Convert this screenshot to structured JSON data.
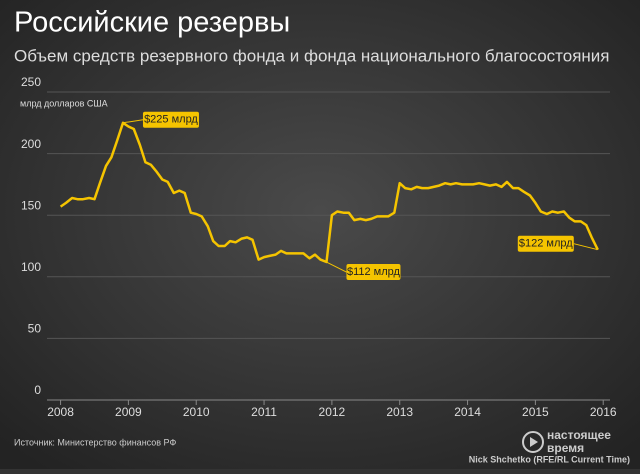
{
  "chart_data": {
    "type": "line",
    "title": "Российские резервы",
    "subtitle": "Объем средств резервного фонда и фонда национального благосостояния",
    "y_axis_label": "млрд долларов США",
    "source": "Источник: Министерство финансов РФ",
    "credit": "Nick Shchetko (RFE/RL Current Time)",
    "logo": [
      "настоящее",
      "время"
    ],
    "annotations": [
      "$225 млрд",
      "$112 млрд",
      "$122 млрд"
    ],
    "xlim": [
      2007.8,
      2016.1
    ],
    "xticks": [
      2008,
      2009,
      2010,
      2011,
      2012,
      2013,
      2014,
      2015,
      2016
    ],
    "ylim": [
      0,
      250
    ],
    "yticks": [
      0,
      50,
      100,
      150,
      200,
      250
    ],
    "grid": true,
    "x": [
      2008.0,
      2008.08,
      2008.17,
      2008.25,
      2008.33,
      2008.42,
      2008.5,
      2008.58,
      2008.67,
      2008.75,
      2008.83,
      2008.92,
      2009.0,
      2009.08,
      2009.17,
      2009.25,
      2009.33,
      2009.42,
      2009.5,
      2009.58,
      2009.67,
      2009.75,
      2009.83,
      2009.92,
      2010.0,
      2010.08,
      2010.17,
      2010.25,
      2010.33,
      2010.42,
      2010.5,
      2010.58,
      2010.67,
      2010.75,
      2010.83,
      2010.92,
      2011.0,
      2011.08,
      2011.17,
      2011.25,
      2011.33,
      2011.42,
      2011.5,
      2011.58,
      2011.67,
      2011.75,
      2011.83,
      2011.92,
      2012.0,
      2012.08,
      2012.17,
      2012.25,
      2012.33,
      2012.42,
      2012.5,
      2012.58,
      2012.67,
      2012.75,
      2012.83,
      2012.92,
      2013.0,
      2013.08,
      2013.17,
      2013.25,
      2013.33,
      2013.42,
      2013.5,
      2013.58,
      2013.67,
      2013.75,
      2013.83,
      2013.92,
      2014.0,
      2014.08,
      2014.17,
      2014.25,
      2014.33,
      2014.42,
      2014.5,
      2014.58,
      2014.67,
      2014.75,
      2014.83,
      2014.92,
      2015.0,
      2015.08,
      2015.17,
      2015.25,
      2015.33,
      2015.42,
      2015.5,
      2015.58,
      2015.67,
      2015.75,
      2015.83,
      2015.92
    ],
    "series": [
      {
        "color": "#f5c400",
        "values": [
          157,
          160,
          164,
          163,
          163,
          164,
          163,
          176,
          190,
          197,
          210,
          225,
          222,
          220,
          207,
          193,
          191,
          185,
          179,
          177,
          168,
          170,
          168,
          152,
          151,
          149,
          141,
          129,
          125,
          125,
          129,
          128,
          131,
          132,
          130,
          114,
          116,
          117,
          118,
          121,
          119,
          119,
          119,
          119,
          115,
          118,
          114,
          112,
          150,
          153,
          152,
          152,
          146,
          147,
          146,
          147,
          149,
          149,
          149,
          152,
          176,
          172,
          171,
          173,
          172,
          172,
          173,
          174,
          176,
          175,
          176,
          175,
          175,
          175,
          176,
          175,
          174,
          175,
          173,
          177,
          172,
          172,
          169,
          166,
          160,
          153,
          151,
          153,
          152,
          153,
          148,
          145,
          145,
          142,
          132,
          122
        ]
      }
    ]
  }
}
